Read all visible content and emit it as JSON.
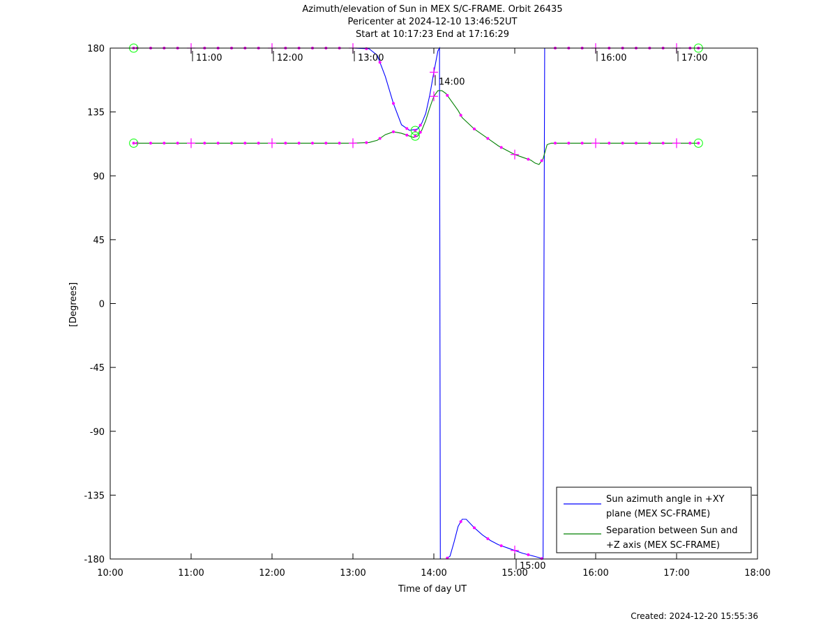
{
  "header": {
    "title": "Azimuth/elevation of Sun in MEX S/C-FRAME.  Orbit 26435",
    "subtitle1": "Pericenter at 2024-12-10 13:46:52UT",
    "subtitle2": "Start at 10:17:23 End at 17:16:29"
  },
  "footer": {
    "created": "Created: 2024-12-20 15:55:36"
  },
  "colors": {
    "azimuth": "#0000ff",
    "separation": "#008000",
    "marker": "#ff00ff",
    "endpoint": "#00ff00"
  },
  "chart_data": {
    "type": "line",
    "xlabel": "Time of day UT",
    "ylabel": "[Degrees]",
    "xlim": [
      10.0,
      18.0
    ],
    "ylim": [
      -180,
      180
    ],
    "xticks": [
      10,
      11,
      12,
      13,
      14,
      15,
      16,
      17,
      18
    ],
    "xtick_labels": [
      "10:00",
      "11:00",
      "12:00",
      "13:00",
      "14:00",
      "15:00",
      "16:00",
      "17:00",
      "18:00"
    ],
    "yticks": [
      180,
      135,
      90,
      45,
      0,
      -45,
      -90,
      -135,
      -180
    ],
    "ytick_labels": [
      "180",
      "135",
      "90",
      "45",
      "0",
      "-45",
      "-90",
      "-135",
      "-180"
    ],
    "hour_marks": [
      {
        "label": "11:00",
        "x": 11.0,
        "y": 180
      },
      {
        "label": "12:00",
        "x": 12.0,
        "y": 180
      },
      {
        "label": "13:00",
        "x": 13.0,
        "y": 180
      },
      {
        "label": "14:00",
        "x": 14.0,
        "y": 163
      },
      {
        "label": "15:00",
        "x": 15.0,
        "y": -178
      },
      {
        "label": "16:00",
        "x": 16.0,
        "y": 180
      },
      {
        "label": "17:00",
        "x": 17.0,
        "y": 180
      }
    ],
    "legend": {
      "position": "lower-right",
      "entries": [
        {
          "label_line1": "Sun azimuth angle in +XY",
          "label_line2": "plane (MEX SC-FRAME)"
        },
        {
          "label_line1": "Separation between Sun and",
          "label_line2": "+Z axis (MEX SC-FRAME)"
        }
      ]
    },
    "series": [
      {
        "name": "Sun azimuth angle in +XY plane (MEX SC-FRAME)",
        "segments": [
          {
            "x": [
              10.29,
              10.5,
              11.0,
              11.5,
              12.0,
              12.5,
              13.0,
              13.2,
              13.3,
              13.4,
              13.5,
              13.6,
              13.7,
              13.8,
              13.85,
              13.9,
              13.95,
              14.0,
              14.05,
              14.07
            ],
            "y": [
              180,
              180,
              180,
              180,
              180,
              180,
              180,
              179.5,
              175,
              160,
              141,
              126,
              122,
              123,
              127,
              134,
              147,
              163,
              178,
              180
            ]
          },
          {
            "x": [
              14.08,
              14.1,
              14.15,
              14.2,
              14.25,
              14.3,
              14.35,
              14.4,
              14.5,
              14.6,
              14.7,
              14.8,
              14.9,
              15.0,
              15.1,
              15.2,
              15.3,
              15.35
            ],
            "y": [
              -180,
              -180,
              -180,
              -178,
              -168,
              -157,
              -152,
              -152,
              -158,
              -163,
              -167,
              -170,
              -172,
              -174,
              -176,
              -177.5,
              -179,
              -180
            ]
          },
          {
            "x": [
              15.37,
              15.45,
              15.5,
              16.0,
              16.5,
              17.0,
              17.27
            ],
            "y": [
              180,
              180,
              180,
              180,
              180,
              180,
              180
            ]
          }
        ]
      },
      {
        "name": "Separation between Sun and +Z axis (MEX SC-FRAME)",
        "segments": [
          {
            "x": [
              10.29,
              10.5,
              11.0,
              11.5,
              12.0,
              12.5,
              13.0,
              13.2,
              13.3,
              13.4,
              13.5,
              13.6,
              13.7,
              13.75,
              13.8,
              13.85,
              13.9,
              13.95,
              14.0,
              14.05,
              14.1,
              14.15,
              14.2,
              14.3,
              14.35,
              14.5,
              14.6,
              14.7,
              14.8,
              14.9,
              15.0,
              15.1,
              15.2,
              15.25,
              15.3,
              15.35,
              15.4,
              15.45,
              15.5,
              16.0,
              16.5,
              17.0,
              17.27
            ],
            "y": [
              113,
              113,
              113,
              113,
              113,
              113,
              113,
              113.5,
              115,
              119,
              121,
              120,
              118,
              117,
              118,
              122,
              129,
              138,
              146,
              150,
              150,
              148,
              144,
              136,
              131,
              123,
              119,
              115,
              111,
              108,
              105,
              103,
              101,
              99,
              98,
              102,
              112,
              113,
              113,
              113,
              113,
              113,
              113
            ]
          }
        ]
      }
    ],
    "start_end_markers": [
      {
        "x": 10.29,
        "y": 180
      },
      {
        "x": 17.27,
        "y": 180
      },
      {
        "x": 10.29,
        "y": 113
      },
      {
        "x": 17.27,
        "y": 113
      },
      {
        "x": 13.77,
        "y": 122
      },
      {
        "x": 13.77,
        "y": 118
      }
    ]
  }
}
